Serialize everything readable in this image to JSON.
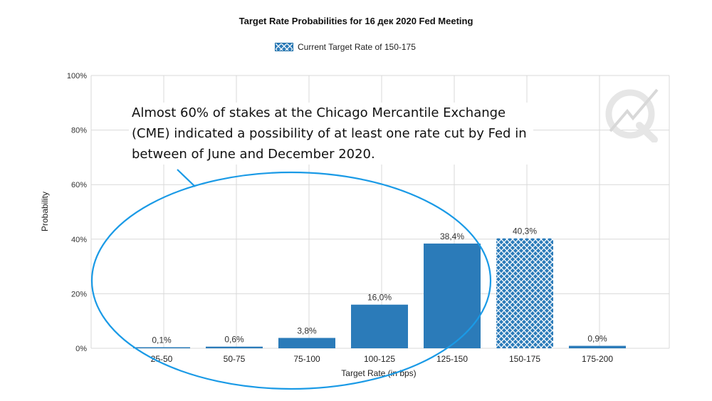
{
  "chart_data": {
    "type": "bar",
    "title": "Target Rate Probabilities for 16 дек 2020 Fed Meeting",
    "xlabel": "Target Rate (in bps)",
    "ylabel": "Probability",
    "ylim": [
      0,
      100
    ],
    "y_ticks": [
      "0%",
      "20%",
      "40%",
      "60%",
      "80%",
      "100%"
    ],
    "categories": [
      "25-50",
      "50-75",
      "75-100",
      "100-125",
      "125-150",
      "150-175",
      "175-200"
    ],
    "values": [
      0.1,
      0.6,
      3.8,
      16.0,
      38.4,
      40.3,
      0.9
    ],
    "value_labels": [
      "0,1%",
      "0,6%",
      "3,8%",
      "16,0%",
      "38,4%",
      "40,3%",
      "0,9%"
    ],
    "highlighted_category": "150-175",
    "legend": {
      "label": "Current Target Rate of 150-175",
      "placement": "top-center"
    },
    "grid": true,
    "colors": {
      "bar": "#2b7bb9",
      "highlight": "#2b7bb9",
      "grid": "#d9d9d9",
      "ellipse": "#1a9ae6"
    }
  },
  "annotation": {
    "text": "Almost 60% of stakes at the Chicago Mercantile Exchange (CME) indicated a possibility of at least one rate cut by Fed in between of June and December 2020."
  },
  "watermark": {
    "icon": "q-logo-icon"
  }
}
